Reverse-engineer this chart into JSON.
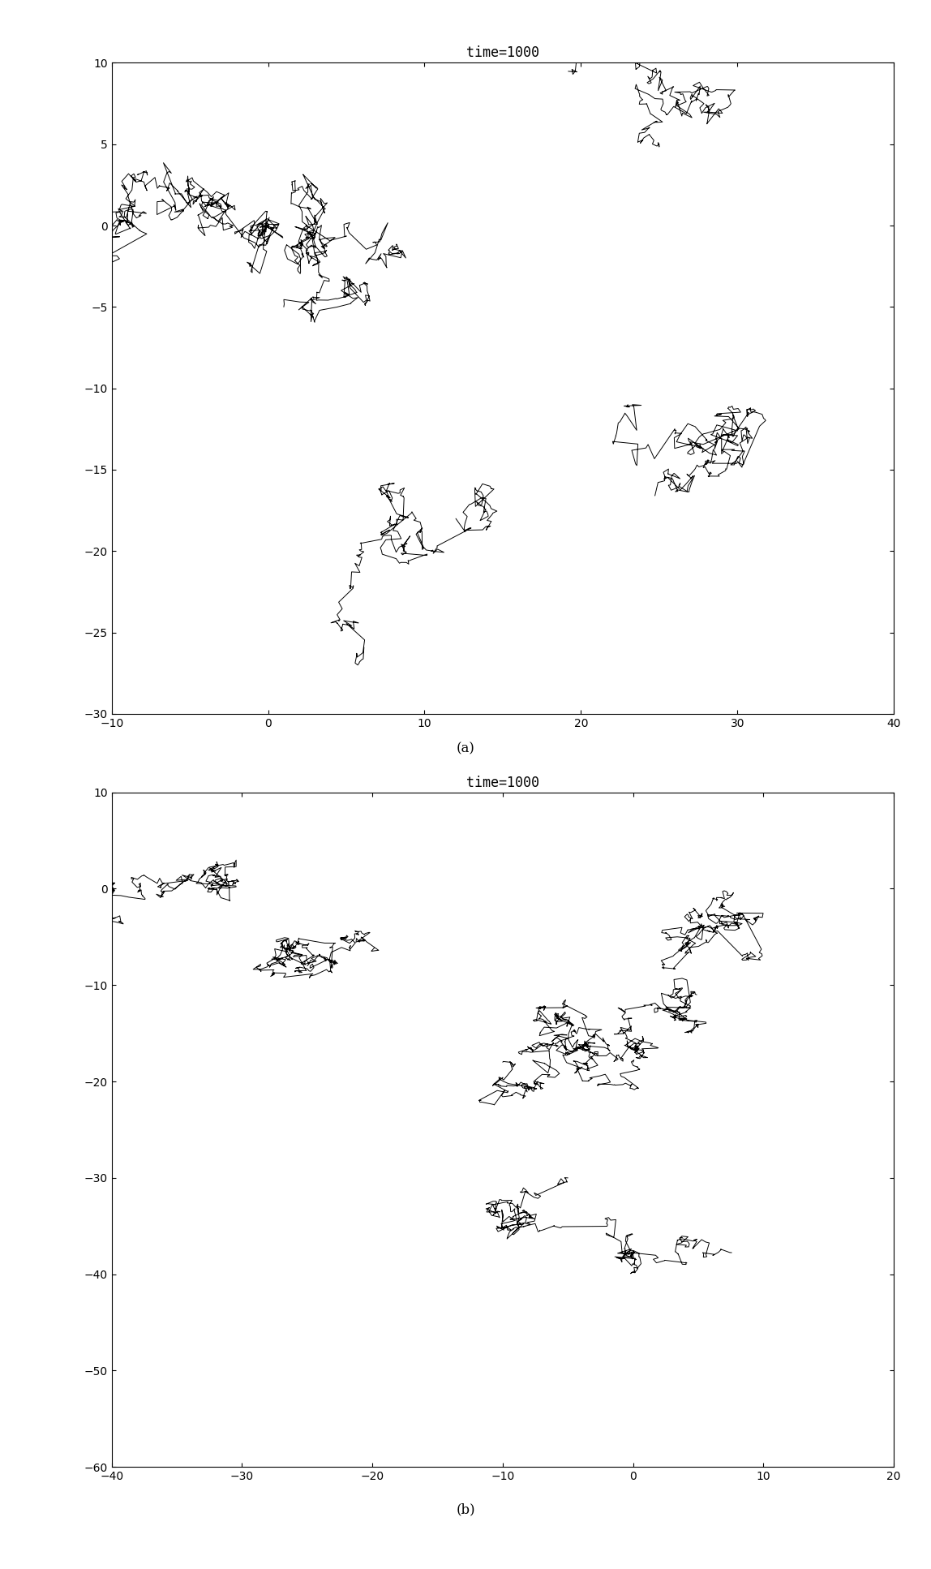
{
  "title_a": "time=1000",
  "title_b": "time=1000",
  "label_a": "(a)",
  "label_b": "(b)",
  "xlim_a": [
    -10,
    40
  ],
  "ylim_a": [
    -30,
    10
  ],
  "xlim_b": [
    -40,
    20
  ],
  "ylim_b": [
    -60,
    10
  ],
  "xticks_a": [
    -10,
    0,
    10,
    20,
    30,
    40
  ],
  "yticks_a": [
    -30,
    -25,
    -20,
    -15,
    -10,
    -5,
    0,
    5,
    10
  ],
  "xticks_b": [
    -40,
    -30,
    -20,
    -10,
    0,
    10,
    20
  ],
  "yticks_b": [
    -60,
    -50,
    -40,
    -30,
    -20,
    -10,
    0,
    10
  ],
  "line_color": "#000000",
  "line_width": 0.7,
  "background_color": "#ffffff",
  "title_fontsize": 12,
  "label_fontsize": 12,
  "tick_fontsize": 10
}
